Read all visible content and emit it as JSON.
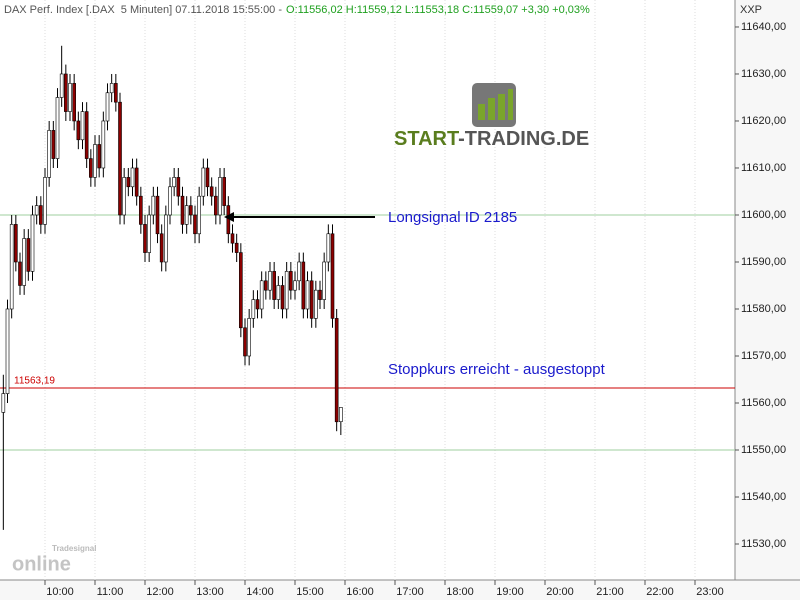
{
  "chart_data": {
    "type": "candlestick",
    "title": "DAX Perf. Index [.DAX  5 Minuten] 07.11.2018 15:55:00 -",
    "quote": "O:11556,02 H:11559,12 L:11553,18 C:11559,07 +3,30 +0,03%",
    "axis_name": "XXP",
    "x": [
      "09:10",
      "09:15",
      "09:20",
      "09:25",
      "09:30",
      "09:35",
      "09:40",
      "09:45",
      "09:50",
      "09:55",
      "10:00",
      "10:05",
      "10:10",
      "10:15",
      "10:20",
      "10:25",
      "10:30",
      "10:35",
      "10:40",
      "10:45",
      "10:50",
      "10:55",
      "11:00",
      "11:05",
      "11:10",
      "11:15",
      "11:20",
      "11:25",
      "11:30",
      "11:35",
      "11:40",
      "11:45",
      "11:50",
      "11:55",
      "12:00",
      "12:05",
      "12:10",
      "12:15",
      "12:20",
      "12:25",
      "12:30",
      "12:35",
      "12:40",
      "12:45",
      "12:50",
      "12:55",
      "13:00",
      "13:05",
      "13:10",
      "13:15",
      "13:20",
      "13:25",
      "13:30",
      "13:35",
      "13:40",
      "13:45",
      "13:50",
      "13:55",
      "14:00",
      "14:05",
      "14:10",
      "14:15",
      "14:20",
      "14:25",
      "14:30",
      "14:35",
      "14:40",
      "14:45",
      "14:50",
      "14:55",
      "15:00",
      "15:05",
      "15:10",
      "15:15",
      "15:20",
      "15:25",
      "15:30",
      "15:35",
      "15:40",
      "15:45",
      "15:50",
      "15:55"
    ],
    "open": [
      11558,
      11562,
      11580,
      11598,
      11590,
      11585,
      11595,
      11588,
      11600,
      11602,
      11598,
      11608,
      11618,
      11612,
      11625,
      11630,
      11622,
      11628,
      11620,
      11616,
      11622,
      11612,
      11608,
      11615,
      11610,
      11620,
      11626,
      11628,
      11624,
      11600,
      11608,
      11606,
      11610,
      11604,
      11598,
      11592,
      11600,
      11604,
      11596,
      11590,
      11600,
      11606,
      11608,
      11604,
      11598,
      11602,
      11600,
      11596,
      11604,
      11610,
      11606,
      11604,
      11600,
      11608,
      11602,
      11596,
      11594,
      11592,
      11576,
      11570,
      11578,
      11582,
      11580,
      11586,
      11584,
      11588,
      11582,
      11585,
      11580,
      11588,
      11584,
      11586,
      11590,
      11580,
      11586,
      11578,
      11584,
      11582,
      11590,
      11596,
      11578,
      11556.02
    ],
    "high": [
      11566,
      11582,
      11600,
      11600,
      11592,
      11597,
      11597,
      11602,
      11604,
      11604,
      11610,
      11620,
      11620,
      11627,
      11636,
      11632,
      11630,
      11630,
      11622,
      11624,
      11624,
      11614,
      11617,
      11617,
      11622,
      11628,
      11630,
      11630,
      11626,
      11610,
      11610,
      11612,
      11612,
      11606,
      11600,
      11602,
      11606,
      11606,
      11598,
      11602,
      11608,
      11610,
      11610,
      11606,
      11604,
      11604,
      11602,
      11606,
      11612,
      11612,
      11608,
      11606,
      11610,
      11610,
      11604,
      11598,
      11596,
      11594,
      11578,
      11580,
      11584,
      11584,
      11588,
      11588,
      11590,
      11590,
      11587,
      11587,
      11590,
      11590,
      11588,
      11592,
      11592,
      11588,
      11588,
      11586,
      11586,
      11592,
      11598,
      11598,
      11580,
      11559.12
    ],
    "low": [
      11533,
      11560,
      11578,
      11588,
      11583,
      11583,
      11586,
      11586,
      11598,
      11596,
      11596,
      11606,
      11610,
      11610,
      11623,
      11620,
      11620,
      11618,
      11614,
      11614,
      11610,
      11606,
      11606,
      11608,
      11608,
      11618,
      11624,
      11622,
      11598,
      11598,
      11604,
      11604,
      11602,
      11596,
      11590,
      11590,
      11598,
      11594,
      11588,
      11588,
      11598,
      11604,
      11602,
      11596,
      11596,
      11598,
      11594,
      11594,
      11602,
      11604,
      11602,
      11598,
      11598,
      11600,
      11594,
      11592,
      11590,
      11574,
      11568,
      11568,
      11576,
      11578,
      11578,
      11582,
      11582,
      11580,
      11580,
      11578,
      11578,
      11582,
      11582,
      11584,
      11578,
      11578,
      11576,
      11576,
      11580,
      11580,
      11588,
      11576,
      11554,
      11553.18
    ],
    "close": [
      11562,
      11580,
      11598,
      11590,
      11585,
      11595,
      11588,
      11600,
      11602,
      11598,
      11608,
      11618,
      11612,
      11625,
      11630,
      11622,
      11628,
      11620,
      11616,
      11622,
      11612,
      11608,
      11615,
      11610,
      11620,
      11626,
      11628,
      11624,
      11600,
      11608,
      11606,
      11610,
      11604,
      11598,
      11592,
      11600,
      11604,
      11596,
      11590,
      11600,
      11606,
      11608,
      11604,
      11598,
      11602,
      11600,
      11596,
      11604,
      11610,
      11606,
      11604,
      11600,
      11608,
      11602,
      11596,
      11594,
      11592,
      11576,
      11570,
      11578,
      11582,
      11580,
      11586,
      11584,
      11588,
      11582,
      11585,
      11580,
      11588,
      11584,
      11586,
      11590,
      11580,
      11586,
      11578,
      11584,
      11582,
      11590,
      11596,
      11578,
      11556,
      11559.07
    ],
    "up_color": "#ffffff",
    "down_color": "#8b0000",
    "outline_color": "#000000",
    "xlim": [
      "09:06",
      "23:48"
    ],
    "xticks": [
      "10:00",
      "11:00",
      "12:00",
      "13:00",
      "14:00",
      "15:00",
      "16:00",
      "17:00",
      "18:00",
      "19:00",
      "20:00",
      "21:00",
      "22:00",
      "23:00"
    ],
    "ylim": [
      11522.34,
      11645.74
    ],
    "yticks": [
      {
        "value": 11530,
        "label": "11530,00"
      },
      {
        "value": 11540,
        "label": "11540,00"
      },
      {
        "value": 11550,
        "label": "11550,00"
      },
      {
        "value": 11560,
        "label": "11560,00"
      },
      {
        "value": 11570,
        "label": "11570,00"
      },
      {
        "value": 11580,
        "label": "11580,00"
      },
      {
        "value": 11590,
        "label": "11590,00"
      },
      {
        "value": 11600,
        "label": "11600,00"
      },
      {
        "value": 11610,
        "label": "11610,00"
      },
      {
        "value": 11620,
        "label": "11620,00"
      },
      {
        "value": 11630,
        "label": "11630,00"
      },
      {
        "value": 11640,
        "label": "11640,00"
      }
    ],
    "grid": true,
    "hlines": [
      {
        "value": 11600,
        "color": "#9fcf9f"
      },
      {
        "value": 11550,
        "color": "#9fcf9f"
      },
      {
        "value": 11563.19,
        "label": "11563,19",
        "color": "#cc0000"
      }
    ],
    "annotations": [
      "Longsignal ID 2185",
      "Stoppkurs erreicht - ausgestoppt"
    ],
    "logo": {
      "brand": "START",
      "domain": "-TRADING.DE"
    },
    "watermark": [
      "Tradesignal",
      "online"
    ]
  }
}
